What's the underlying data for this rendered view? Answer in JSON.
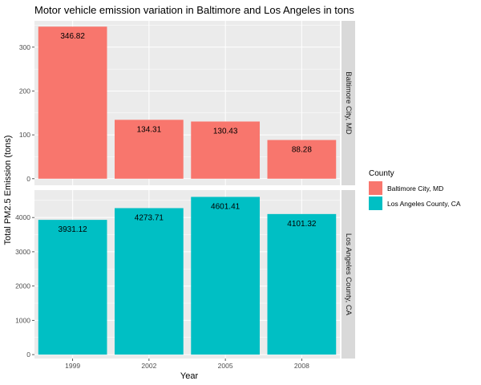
{
  "chart_data": {
    "type": "bar",
    "title": "Motor vehicle emission variation in Baltimore and Los Angeles in tons",
    "xlabel": "Year",
    "ylabel": "Total PM2.5 Emission (tons)",
    "categories": [
      "1999",
      "2002",
      "2005",
      "2008"
    ],
    "facets": [
      {
        "name": "Baltimore City, MD",
        "color": "#F8766D",
        "values": [
          346.82,
          134.31,
          130.43,
          88.28
        ],
        "labels": [
          "346.82",
          "134.31",
          "130.43",
          "88.28"
        ],
        "ylim": [
          -15,
          360
        ],
        "yticks": [
          0,
          100,
          200,
          300
        ],
        "ytick_labels": [
          "0",
          "100",
          "200",
          "300"
        ]
      },
      {
        "name": "Los Angeles County, CA",
        "color": "#00BFC4",
        "values": [
          3931.12,
          4273.71,
          4601.41,
          4101.32
        ],
        "labels": [
          "3931.12",
          "4273.71",
          "4601.41",
          "4101.32"
        ],
        "ylim": [
          -115,
          4800
        ],
        "yticks": [
          0,
          1000,
          2000,
          3000,
          4000
        ],
        "ytick_labels": [
          "0",
          "1000",
          "2000",
          "3000",
          "4000"
        ]
      }
    ],
    "legend": {
      "title": "County",
      "position": "right",
      "entries": [
        {
          "label": "Baltimore City, MD",
          "color": "#F8766D"
        },
        {
          "label": "Los Angeles County, CA",
          "color": "#00BFC4"
        }
      ]
    },
    "panel_background": "#EBEBEB",
    "strip_background": "#D9D9D9",
    "grid_color": "#FFFFFF"
  }
}
